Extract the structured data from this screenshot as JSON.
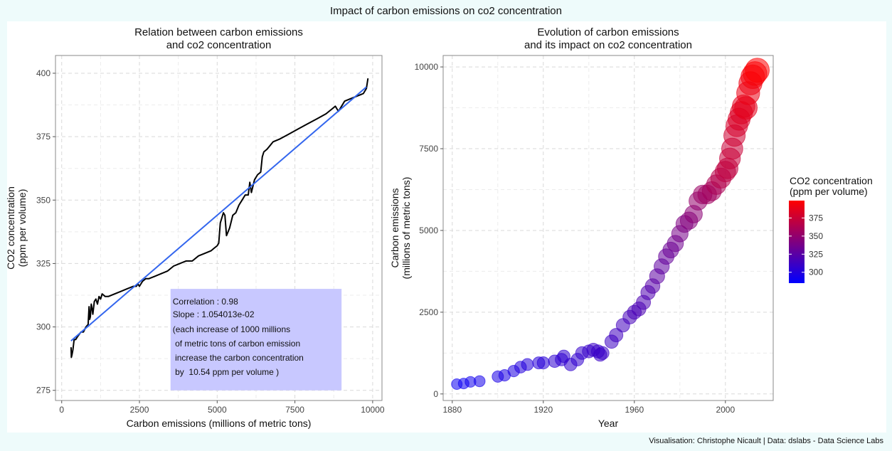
{
  "figure": {
    "title": "Impact of carbon emissions on co2 concentration",
    "caption": "Visualisation: Christophe Nicault | Data: dslabs - Data Science Labs"
  },
  "colors": {
    "line": "#000000",
    "fit": "#3366ee",
    "annotation_box": "#c8c8ff",
    "gradient_low": "#0000ff",
    "gradient_high": "#ff0000",
    "grid": "#d9d9d9"
  },
  "chart_data": [
    {
      "type": "line",
      "title_lines": [
        "Relation between carbon emissions",
        "and co2 concentration"
      ],
      "xlabel": "Carbon emissions (millions of metric tons)",
      "ylabel_lines": [
        "CO2 concentration",
        "(ppm per volume)"
      ],
      "xlim": [
        -200,
        10300
      ],
      "ylim": [
        271,
        407
      ],
      "xticks": [
        0,
        2500,
        5000,
        7500,
        10000
      ],
      "yticks": [
        275,
        300,
        325,
        350,
        375,
        400
      ],
      "grid": true,
      "series": [
        {
          "x": [
            300,
            310,
            330,
            360,
            400,
            450,
            500,
            560,
            620,
            700,
            780,
            850,
            880,
            900,
            920,
            950,
            980,
            1000,
            1050,
            1100,
            1150,
            1200,
            1250,
            1300,
            1400,
            1500,
            1700,
            1900,
            2100,
            2300,
            2400,
            2450,
            2500,
            2600,
            2700,
            2800,
            3000,
            3200,
            3400,
            3600,
            3800,
            4000,
            4200,
            4400,
            4600,
            4800,
            4900,
            5000,
            5050,
            5100,
            5150,
            5200,
            5250,
            5300,
            5400,
            5500,
            5600,
            5700,
            5800,
            5900,
            6000,
            6050,
            6100,
            6200,
            6300,
            6400,
            6450,
            6500,
            6600,
            6800,
            7000,
            7300,
            7600,
            7900,
            8200,
            8500,
            8700,
            8800,
            8900,
            9000,
            9100,
            9300,
            9500,
            9700,
            9800,
            9850
          ],
          "y": [
            292,
            288,
            289,
            291,
            295,
            295,
            296,
            297,
            298,
            298,
            300,
            301,
            308,
            303,
            304,
            309,
            307,
            305,
            310,
            311,
            309,
            312,
            311,
            313,
            312,
            312,
            313,
            314,
            315,
            316,
            316,
            317,
            316,
            318,
            319,
            319,
            320,
            321,
            322,
            324,
            325,
            326,
            326,
            328,
            329,
            330,
            331,
            332,
            333,
            341,
            343,
            345,
            344,
            336,
            339,
            344,
            345,
            348,
            350,
            352,
            352,
            357,
            353,
            358,
            360,
            361,
            367,
            369,
            370,
            373,
            374,
            376,
            378,
            380,
            382,
            384,
            386,
            387,
            385,
            387,
            389,
            390,
            391,
            392,
            394,
            398
          ]
        }
      ],
      "fit": {
        "x": [
          300,
          9800
        ],
        "y": [
          294.5,
          394.6
        ]
      },
      "annotation": {
        "x_range": [
          3500,
          9000
        ],
        "y_range": [
          275,
          315
        ],
        "lines": [
          "Correlation : 0.98",
          "Slope : 1.054013e-02",
          "(each increase of 1000 millions",
          " of metric tons of carbon emission",
          " increase the carbon concentration",
          " by  10.54 ppm per volume )"
        ]
      }
    },
    {
      "type": "scatter",
      "title_lines": [
        "Evolution of carbon emissions",
        "and its impact on co2 concentration"
      ],
      "xlabel": "Year",
      "ylabel_lines": [
        "Carbon emissions",
        "(millions of metric tons)"
      ],
      "xlim": [
        1876,
        2021
      ],
      "ylim": [
        -200,
        10350
      ],
      "xticks": [
        1880,
        1920,
        1960,
        2000
      ],
      "yticks": [
        0,
        2500,
        5000,
        7500,
        10000
      ],
      "grid": true,
      "legend": {
        "title_lines": [
          "CO2 concentration",
          "(ppm per volume)"
        ],
        "range": [
          285,
          399
        ],
        "ticks": [
          300,
          325,
          350,
          375
        ],
        "placement": "right"
      },
      "points": {
        "year": [
          1882,
          1885,
          1888,
          1892,
          1900,
          1903,
          1907,
          1910,
          1913,
          1918,
          1920,
          1925,
          1928,
          1929,
          1932,
          1935,
          1937,
          1940,
          1942,
          1944,
          1945,
          1946,
          1950,
          1952,
          1955,
          1958,
          1960,
          1962,
          1964,
          1966,
          1968,
          1970,
          1972,
          1974,
          1976,
          1978,
          1980,
          1982,
          1984,
          1986,
          1988,
          1990,
          1992,
          1994,
          1996,
          1998,
          2000,
          2001,
          2002,
          2003,
          2004,
          2005,
          2006,
          2007,
          2008,
          2009,
          2010,
          2011,
          2012,
          2013,
          2014
        ],
        "emissions": [
          300,
          320,
          370,
          390,
          530,
          570,
          700,
          820,
          900,
          950,
          950,
          1000,
          1050,
          1150,
          900,
          1050,
          1250,
          1300,
          1350,
          1300,
          1200,
          1250,
          1600,
          1800,
          2100,
          2350,
          2500,
          2600,
          2800,
          3100,
          3300,
          3600,
          3900,
          4200,
          4400,
          4600,
          4900,
          5200,
          5300,
          5500,
          5900,
          6100,
          6100,
          6200,
          6400,
          6600,
          6800,
          6900,
          7200,
          7500,
          7900,
          8200,
          8400,
          8600,
          8800,
          8750,
          9200,
          9500,
          9700,
          9800,
          9900
        ],
        "co2": [
          291,
          291,
          292,
          294,
          296,
          297,
          298,
          300,
          301,
          302,
          303,
          305,
          306,
          306,
          307,
          307,
          308,
          309,
          310,
          310,
          310,
          310,
          312,
          313,
          314,
          316,
          317,
          318,
          319,
          320,
          323,
          326,
          327,
          330,
          332,
          335,
          338,
          341,
          344,
          347,
          351,
          354,
          356,
          358,
          362,
          367,
          369,
          371,
          373,
          375,
          377,
          380,
          382,
          384,
          386,
          387,
          390,
          391,
          394,
          396,
          398
        ]
      }
    }
  ]
}
